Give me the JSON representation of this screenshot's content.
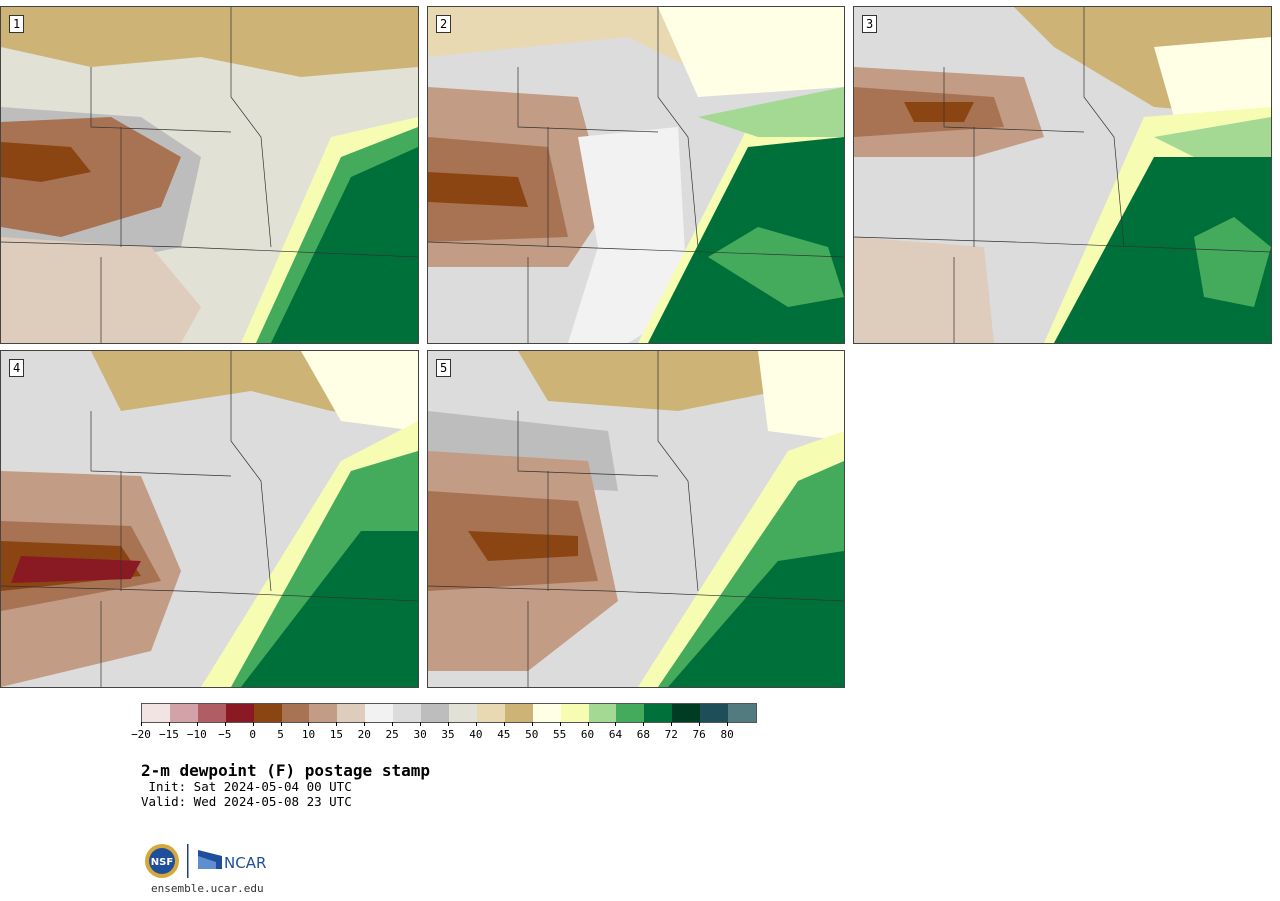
{
  "panels": [
    {
      "label": "1"
    },
    {
      "label": "2"
    },
    {
      "label": "3"
    },
    {
      "label": "4"
    },
    {
      "label": "5"
    }
  ],
  "legend": {
    "colors": [
      "#f3e4e4",
      "#d3a2a8",
      "#b05e64",
      "#891a23",
      "#8b4513",
      "#a87353",
      "#c29c84",
      "#deccbc",
      "#f2f2f2",
      "#dcdcdc",
      "#bdbdbd",
      "#e1e1d6",
      "#e8d9b3",
      "#cdb476",
      "#ffffe6",
      "#f7fcb3",
      "#a3d993",
      "#45ab5c",
      "#00703b",
      "#003b24",
      "#1e4f58",
      "#527b80"
    ],
    "ticks": [
      "−20",
      "−15",
      "−10",
      "−5",
      "0",
      "5",
      "10",
      "15",
      "20",
      "25",
      "30",
      "35",
      "40",
      "45",
      "50",
      "55",
      "60",
      "64",
      "68",
      "72",
      "76",
      "80"
    ]
  },
  "title": "2-m dewpoint (F) postage stamp",
  "init": " Init: Sat 2024-05-04 00 UTC",
  "valid": "Valid: Wed 2024-05-08 23 UTC",
  "logo": {
    "nsf": "NSF",
    "ncar": "NCAR"
  },
  "site": "ensemble.ucar.edu"
}
